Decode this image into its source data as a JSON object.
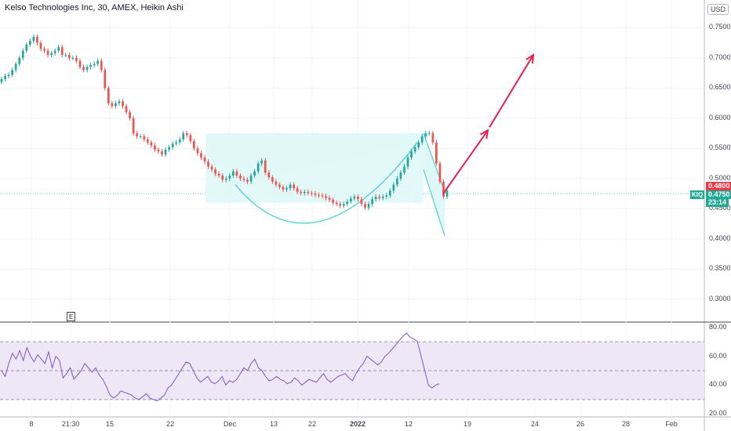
{
  "header": {
    "title": "Kelso Technologies Inc, 30, AMEX, Heikin Ashi",
    "currency": "USD"
  },
  "price_axis": {
    "ticks": [
      "0.7500",
      "0.7000",
      "0.6500",
      "0.6000",
      "0.5500",
      "0.5000",
      "0.4500",
      "0.4000",
      "0.3500",
      "0.3000"
    ]
  },
  "price_tags": {
    "last": "0.4800",
    "current": "0.4750",
    "countdown": "23:14",
    "ticker": "KIQ"
  },
  "indicator_axis": {
    "ticks": [
      "80.00",
      "60.00",
      "40.00",
      "20.00"
    ]
  },
  "time_axis": {
    "ticks": [
      "8",
      "21:30",
      "15",
      "22",
      "Dec",
      "13",
      "22",
      "2022",
      "12",
      "19",
      "24",
      "26",
      "28",
      "Feb"
    ]
  },
  "earnings_marker": "E",
  "colors": {
    "up": "#26a69a",
    "down": "#ef5350",
    "pattern_fill": "#e0f7f7",
    "pattern_line": "#4dd0d1",
    "arrow": "#e91e4f",
    "rsi_line": "#7e57c2",
    "rsi_band": "#ede7f6"
  },
  "chart_data": [
    {
      "type": "candlestick",
      "style": "Heikin Ashi",
      "symbol": "KIQ",
      "interval": "30",
      "ylim": [
        0.27,
        0.77
      ],
      "closes": [
        0.665,
        0.67,
        0.672,
        0.68,
        0.69,
        0.7,
        0.712,
        0.722,
        0.728,
        0.735,
        0.725,
        0.715,
        0.712,
        0.705,
        0.708,
        0.712,
        0.718,
        0.705,
        0.705,
        0.7,
        0.7,
        0.695,
        0.685,
        0.68,
        0.685,
        0.688,
        0.69,
        0.695,
        0.68,
        0.65,
        0.625,
        0.62,
        0.625,
        0.628,
        0.62,
        0.61,
        0.6,
        0.575,
        0.57,
        0.57,
        0.565,
        0.56,
        0.555,
        0.548,
        0.545,
        0.54,
        0.548,
        0.552,
        0.558,
        0.56,
        0.565,
        0.575,
        0.572,
        0.562,
        0.55,
        0.542,
        0.535,
        0.528,
        0.52,
        0.515,
        0.508,
        0.505,
        0.498,
        0.5,
        0.505,
        0.512,
        0.505,
        0.5,
        0.498,
        0.495,
        0.505,
        0.512,
        0.525,
        0.53,
        0.51,
        0.502,
        0.495,
        0.49,
        0.486,
        0.482,
        0.484,
        0.49,
        0.484,
        0.478,
        0.476,
        0.478,
        0.476,
        0.475,
        0.473,
        0.472,
        0.471,
        0.468,
        0.465,
        0.46,
        0.458,
        0.455,
        0.458,
        0.462,
        0.467,
        0.47,
        0.466,
        0.458,
        0.452,
        0.458,
        0.466,
        0.47,
        0.468,
        0.47,
        0.472,
        0.48,
        0.49,
        0.5,
        0.51,
        0.52,
        0.535,
        0.545,
        0.552,
        0.56,
        0.57,
        0.575,
        0.575,
        0.56,
        0.525,
        0.495,
        0.47,
        0.48
      ]
    },
    {
      "type": "line",
      "indicator": "RSI",
      "ylim": [
        18,
        82
      ],
      "upper_band": 70,
      "middle_band": 50,
      "lower_band": 30,
      "values": [
        50,
        46,
        55,
        62,
        58,
        64,
        57,
        66,
        60,
        56,
        61,
        58,
        55,
        63,
        52,
        60,
        57,
        45,
        48,
        52,
        44,
        47,
        50,
        55,
        52,
        49,
        52,
        47,
        44,
        39,
        33,
        31,
        33,
        36,
        35,
        34,
        33,
        31,
        30,
        32,
        34,
        31,
        30,
        29,
        31,
        33,
        38,
        40,
        44,
        48,
        52,
        56,
        55,
        50,
        45,
        42,
        44,
        46,
        42,
        41,
        43,
        46,
        40,
        43,
        42,
        44,
        48,
        52,
        50,
        55,
        58,
        52,
        50,
        46,
        43,
        44,
        46,
        44,
        43,
        41,
        42,
        45,
        43,
        40,
        42,
        44,
        43,
        42,
        45,
        48,
        44,
        42,
        44,
        46,
        47,
        48,
        45,
        43,
        48,
        52,
        55,
        60,
        58,
        56,
        54,
        56,
        60,
        62,
        65,
        68,
        71,
        74,
        76,
        73,
        72,
        70,
        60,
        50,
        40,
        38,
        40,
        41
      ]
    }
  ]
}
